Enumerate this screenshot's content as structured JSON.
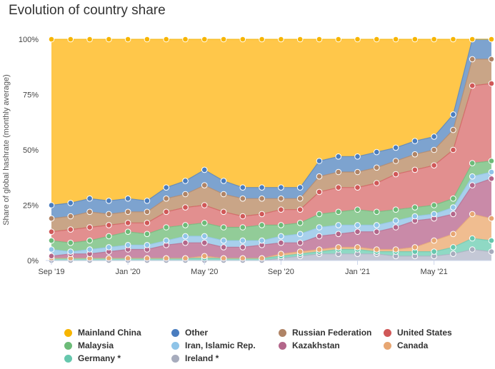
{
  "chart_data": {
    "type": "area",
    "stacked": true,
    "title": "Evolution of country share",
    "ylabel": "Share of global hashrate (monthly average)",
    "xlabel": "",
    "ylim": [
      0,
      100
    ],
    "y_ticks": [
      "0%",
      "25%",
      "50%",
      "75%",
      "100%"
    ],
    "y_tick_values": [
      0,
      25,
      50,
      75,
      100
    ],
    "x_ticks": [
      {
        "label": "Sep '19",
        "index": 0
      },
      {
        "label": "Jan '20",
        "index": 4
      },
      {
        "label": "May '20",
        "index": 8
      },
      {
        "label": "Sep '20",
        "index": 12
      },
      {
        "label": "Jan '21",
        "index": 16
      },
      {
        "label": "May '21",
        "index": 20
      }
    ],
    "x": [
      "2019-09",
      "2019-10",
      "2019-11",
      "2019-12",
      "2020-01",
      "2020-02",
      "2020-03",
      "2020-04",
      "2020-05",
      "2020-06",
      "2020-07",
      "2020-08",
      "2020-09",
      "2020-10",
      "2020-11",
      "2020-12",
      "2021-01",
      "2021-02",
      "2021-03",
      "2021-04",
      "2021-05",
      "2021-06",
      "2021-07",
      "2021-08"
    ],
    "cumulative_top": {
      "Ireland *": [
        0,
        0,
        0,
        0,
        0,
        0,
        0,
        0,
        0,
        0,
        0,
        0,
        1,
        2,
        3,
        3,
        3,
        3,
        2,
        2,
        2,
        3,
        5,
        4
      ],
      "Germany *": [
        1,
        1,
        1,
        1,
        1,
        1,
        1,
        1,
        1,
        1,
        1,
        1,
        2,
        3,
        4,
        5,
        5,
        4,
        4,
        4,
        4,
        6,
        10,
        9
      ],
      "Canada": [
        1,
        1,
        1,
        1,
        1,
        1,
        1,
        1,
        2,
        1,
        1,
        1,
        3,
        4,
        5,
        6,
        6,
        5,
        5,
        6,
        9,
        12,
        21,
        19
      ],
      "Kazakhstan": [
        2,
        3,
        3,
        4,
        5,
        5,
        7,
        8,
        8,
        6,
        6,
        7,
        8,
        8,
        11,
        12,
        13,
        13,
        15,
        18,
        19,
        21,
        34,
        37
      ],
      "Iran, Islamic Rep.": [
        5,
        4,
        5,
        6,
        7,
        7,
        9,
        11,
        11,
        9,
        9,
        9,
        11,
        12,
        15,
        16,
        16,
        16,
        18,
        20,
        21,
        24,
        38,
        40
      ],
      "Malaysia": [
        9,
        8,
        9,
        11,
        13,
        12,
        15,
        16,
        17,
        15,
        15,
        16,
        16,
        17,
        21,
        22,
        23,
        22,
        23,
        24,
        25,
        28,
        44,
        45
      ],
      "United States": [
        13,
        14,
        15,
        16,
        17,
        17,
        22,
        24,
        25,
        22,
        20,
        21,
        23,
        23,
        31,
        33,
        33,
        35,
        39,
        41,
        43,
        50,
        79,
        80
      ],
      "Russian Federation": [
        19,
        20,
        22,
        21,
        22,
        22,
        28,
        30,
        34,
        30,
        28,
        28,
        28,
        28,
        38,
        40,
        40,
        42,
        45,
        48,
        50,
        59,
        91,
        91
      ],
      "Other": [
        25,
        26,
        28,
        27,
        28,
        27,
        33,
        36,
        41,
        36,
        33,
        33,
        33,
        33,
        45,
        47,
        47,
        49,
        51,
        54,
        56,
        66,
        100,
        100
      ],
      "Mainland China": [
        100,
        100,
        100,
        100,
        100,
        100,
        100,
        100,
        100,
        100,
        100,
        100,
        100,
        100,
        100,
        100,
        100,
        100,
        100,
        100,
        100,
        100,
        100,
        100
      ]
    },
    "stack_order": [
      "Ireland *",
      "Germany *",
      "Canada",
      "Kazakhstan",
      "Iran, Islamic Rep.",
      "Malaysia",
      "United States",
      "Russian Federation",
      "Other",
      "Mainland China"
    ],
    "colors": {
      "Mainland China": "#ffc74a",
      "Other": "#7da3cf",
      "Russian Federation": "#c9a587",
      "United States": "#e28f8f",
      "Malaysia": "#92cc98",
      "Iran, Islamic Rep.": "#a8d0ec",
      "Kazakhstan": "#c98aa8",
      "Canada": "#f0bd90",
      "Germany *": "#8fd9c4",
      "Ireland *": "#c4c8d6"
    },
    "marker_colors": {
      "Mainland China": "#f7b500",
      "Other": "#4a7dbf",
      "Russian Federation": "#b08466",
      "United States": "#d05858",
      "Malaysia": "#6cbb78",
      "Iran, Islamic Rep.": "#8fc4e8",
      "Kazakhstan": "#b3668a",
      "Canada": "#e7a672",
      "Germany *": "#66c7ad",
      "Ireland *": "#a7acbd"
    },
    "legend": {
      "placement": "bottom",
      "items": [
        "Mainland China",
        "Other",
        "Russian Federation",
        "United States",
        "Malaysia",
        "Iran, Islamic Rep.",
        "Kazakhstan",
        "Canada",
        "Germany *",
        "Ireland *"
      ]
    },
    "grid": {
      "horizontal": true,
      "vertical": false
    }
  }
}
